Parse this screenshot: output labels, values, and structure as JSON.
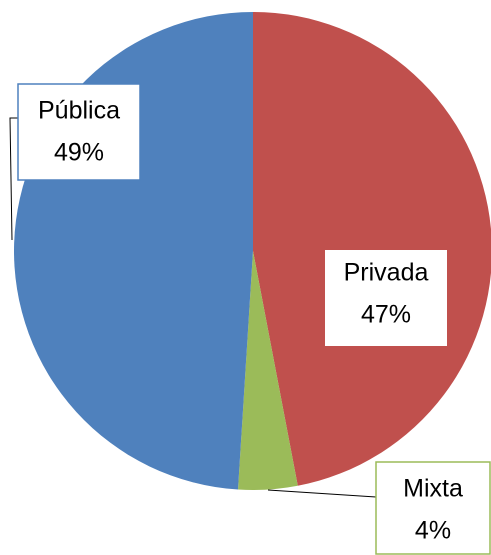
{
  "chart_data": {
    "type": "pie",
    "categories": [
      "Privada",
      "Mixta",
      "Pública"
    ],
    "values": [
      47,
      4,
      49
    ],
    "value_labels": [
      "47%",
      "4%",
      "49%"
    ],
    "colors": [
      "#c0504d",
      "#9bbb59",
      "#4f81bd"
    ]
  }
}
